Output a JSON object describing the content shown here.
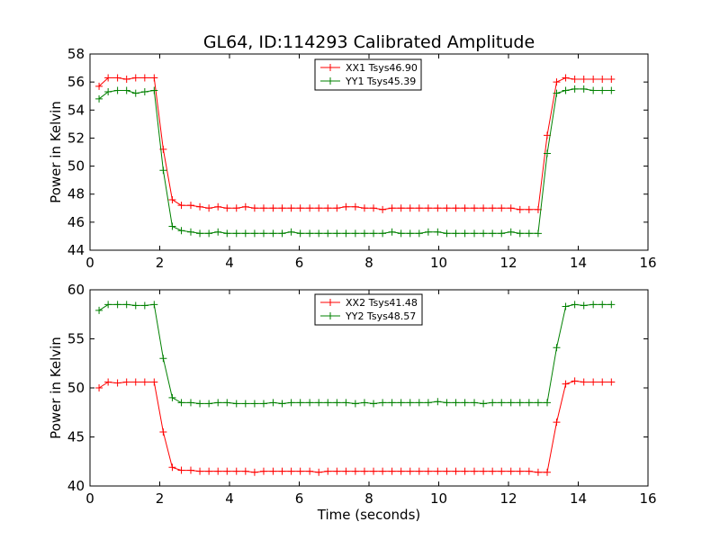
{
  "figure": {
    "title": "GL64, ID:114293 Calibrated Amplitude"
  },
  "chart_data": [
    {
      "type": "line",
      "title": "GL64, ID:114293 Calibrated Amplitude",
      "xlabel": "",
      "ylabel": "Power in Kelvin",
      "xlim": [
        0,
        16
      ],
      "ylim": [
        44,
        58
      ],
      "xticks": [
        0,
        2,
        4,
        6,
        8,
        10,
        12,
        14,
        16
      ],
      "yticks": [
        44,
        46,
        48,
        50,
        52,
        54,
        56,
        58
      ],
      "grid": false,
      "legend": "top-center",
      "x": [
        0.26,
        0.52,
        0.79,
        1.05,
        1.31,
        1.57,
        1.84,
        2.1,
        2.36,
        2.62,
        2.89,
        3.15,
        3.41,
        3.67,
        3.93,
        4.2,
        4.46,
        4.72,
        4.98,
        5.25,
        5.51,
        5.77,
        6.03,
        6.3,
        6.56,
        6.82,
        7.08,
        7.34,
        7.61,
        7.87,
        8.13,
        8.39,
        8.66,
        8.92,
        9.18,
        9.44,
        9.7,
        9.97,
        10.23,
        10.49,
        10.75,
        11.02,
        11.28,
        11.54,
        11.8,
        12.07,
        12.33,
        12.59,
        12.85,
        13.11,
        13.38,
        13.64,
        13.9,
        14.16,
        14.43,
        14.69,
        14.95
      ],
      "series": [
        {
          "name": "XX1 Tsys46.90",
          "color": "#ff0000",
          "values": [
            55.7,
            56.3,
            56.3,
            56.2,
            56.3,
            56.3,
            56.3,
            51.2,
            47.6,
            47.2,
            47.2,
            47.1,
            47.0,
            47.1,
            47.0,
            47.0,
            47.1,
            47.0,
            47.0,
            47.0,
            47.0,
            47.0,
            47.0,
            47.0,
            47.0,
            47.0,
            47.0,
            47.1,
            47.1,
            47.0,
            47.0,
            46.9,
            47.0,
            47.0,
            47.0,
            47.0,
            47.0,
            47.0,
            47.0,
            47.0,
            47.0,
            47.0,
            47.0,
            47.0,
            47.0,
            47.0,
            46.9,
            46.9,
            46.9,
            52.2,
            56.0,
            56.3,
            56.2,
            56.2,
            56.2,
            56.2,
            56.2
          ]
        },
        {
          "name": "YY1 Tsys45.39",
          "color": "#008000",
          "values": [
            54.8,
            55.3,
            55.4,
            55.4,
            55.2,
            55.3,
            55.4,
            49.7,
            45.7,
            45.4,
            45.3,
            45.2,
            45.2,
            45.3,
            45.2,
            45.2,
            45.2,
            45.2,
            45.2,
            45.2,
            45.2,
            45.3,
            45.2,
            45.2,
            45.2,
            45.2,
            45.2,
            45.2,
            45.2,
            45.2,
            45.2,
            45.2,
            45.3,
            45.2,
            45.2,
            45.2,
            45.3,
            45.3,
            45.2,
            45.2,
            45.2,
            45.2,
            45.2,
            45.2,
            45.2,
            45.3,
            45.2,
            45.2,
            45.2,
            50.9,
            55.2,
            55.4,
            55.5,
            55.5,
            55.4,
            55.4,
            55.4
          ]
        }
      ]
    },
    {
      "type": "line",
      "title": "",
      "xlabel": "Time (seconds)",
      "ylabel": "Power in Kelvin",
      "xlim": [
        0,
        16
      ],
      "ylim": [
        40,
        60
      ],
      "xticks": [
        0,
        2,
        4,
        6,
        8,
        10,
        12,
        14,
        16
      ],
      "yticks": [
        40,
        45,
        50,
        55,
        60
      ],
      "grid": false,
      "legend": "top-center",
      "x": [
        0.26,
        0.52,
        0.79,
        1.05,
        1.31,
        1.57,
        1.84,
        2.1,
        2.36,
        2.62,
        2.89,
        3.15,
        3.41,
        3.67,
        3.93,
        4.2,
        4.46,
        4.72,
        4.98,
        5.25,
        5.51,
        5.77,
        6.03,
        6.3,
        6.56,
        6.82,
        7.08,
        7.34,
        7.61,
        7.87,
        8.13,
        8.39,
        8.66,
        8.92,
        9.18,
        9.44,
        9.7,
        9.97,
        10.23,
        10.49,
        10.75,
        11.02,
        11.28,
        11.54,
        11.8,
        12.07,
        12.33,
        12.59,
        12.85,
        13.11,
        13.38,
        13.64,
        13.9,
        14.16,
        14.43,
        14.69,
        14.95
      ],
      "series": [
        {
          "name": "XX2 Tsys41.48",
          "color": "#ff0000",
          "values": [
            50.0,
            50.6,
            50.5,
            50.6,
            50.6,
            50.6,
            50.6,
            45.5,
            41.9,
            41.6,
            41.6,
            41.5,
            41.5,
            41.5,
            41.5,
            41.5,
            41.5,
            41.4,
            41.5,
            41.5,
            41.5,
            41.5,
            41.5,
            41.5,
            41.4,
            41.5,
            41.5,
            41.5,
            41.5,
            41.5,
            41.5,
            41.5,
            41.5,
            41.5,
            41.5,
            41.5,
            41.5,
            41.5,
            41.5,
            41.5,
            41.5,
            41.5,
            41.5,
            41.5,
            41.5,
            41.5,
            41.5,
            41.5,
            41.4,
            41.4,
            46.5,
            50.4,
            50.7,
            50.6,
            50.6,
            50.6,
            50.6
          ]
        },
        {
          "name": "YY2 Tsys48.57",
          "color": "#008000",
          "values": [
            57.9,
            58.5,
            58.5,
            58.5,
            58.4,
            58.4,
            58.5,
            53.0,
            49.0,
            48.5,
            48.5,
            48.4,
            48.4,
            48.5,
            48.5,
            48.4,
            48.4,
            48.4,
            48.4,
            48.5,
            48.4,
            48.5,
            48.5,
            48.5,
            48.5,
            48.5,
            48.5,
            48.5,
            48.4,
            48.5,
            48.4,
            48.5,
            48.5,
            48.5,
            48.5,
            48.5,
            48.5,
            48.6,
            48.5,
            48.5,
            48.5,
            48.5,
            48.4,
            48.5,
            48.5,
            48.5,
            48.5,
            48.5,
            48.5,
            48.5,
            54.1,
            58.3,
            58.5,
            58.4,
            58.5,
            58.5,
            58.5
          ]
        }
      ]
    }
  ]
}
